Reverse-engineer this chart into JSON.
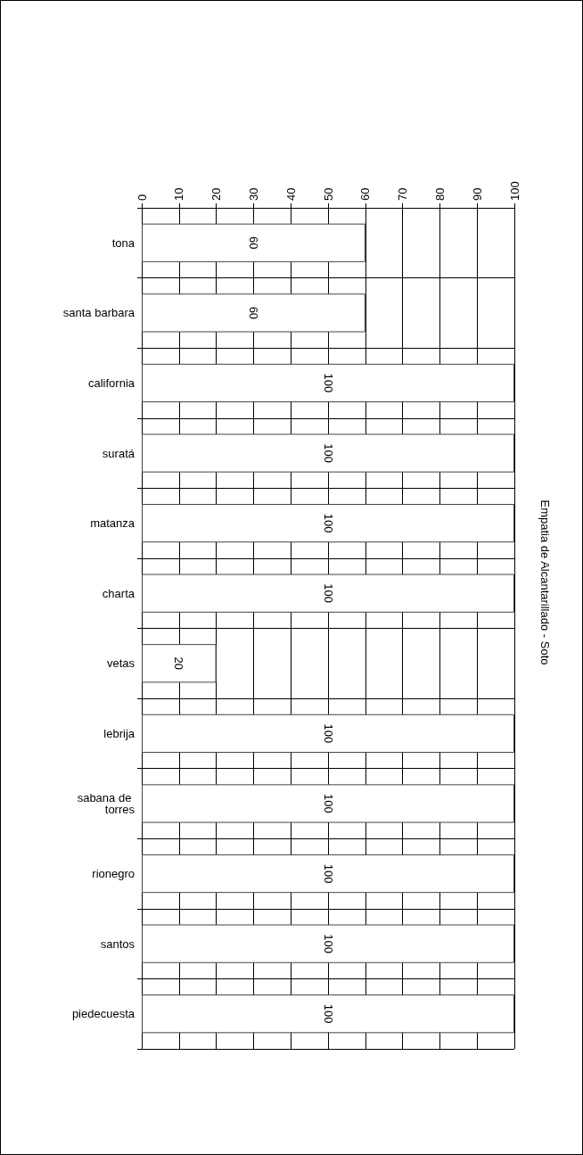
{
  "chart_data": {
    "type": "bar",
    "orientation": "horizontal",
    "title": "Empatia de Alcantarillado - Soto",
    "categories": [
      "tona",
      "santa barbara",
      "california",
      "suratá",
      "matanza",
      "charta",
      "vetas",
      "lebrija",
      "sabana de torres",
      "rionegro",
      "santos",
      "piedecuesta"
    ],
    "values": [
      60,
      60,
      100,
      100,
      100,
      100,
      20,
      100,
      100,
      100,
      100,
      100
    ],
    "color": "#ffffff",
    "xlim": [
      0,
      100
    ],
    "xticks": [
      0,
      10,
      20,
      30,
      40,
      50,
      60,
      70,
      80,
      90,
      100
    ],
    "grid": true,
    "data_labels": true
  }
}
